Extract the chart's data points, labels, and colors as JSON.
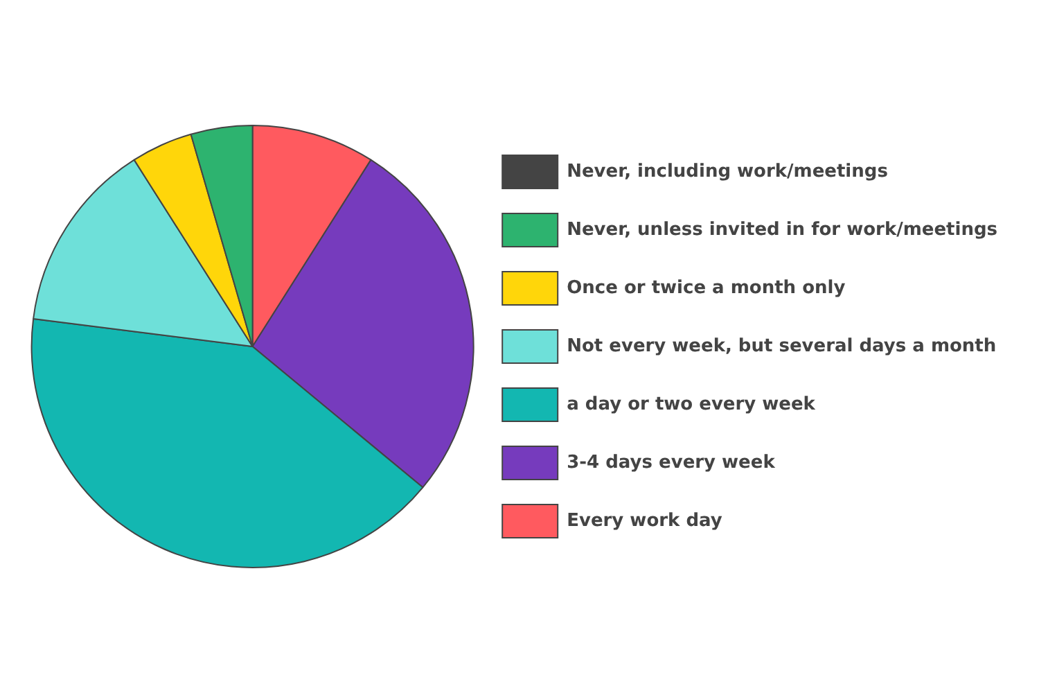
{
  "chart_data": {
    "type": "pie",
    "categories": [
      "Never, including work/meetings",
      "Never, unless invited in for work/meetings",
      "Once or twice a month only",
      "Not every week, but several days a month",
      "a day or two every week",
      "3-4 days every week",
      "Every work day"
    ],
    "values": [
      0,
      4.5,
      4.5,
      14,
      41,
      27,
      9
    ],
    "colors": [
      "#444444",
      "#2db36f",
      "#ffd60a",
      "#6ee0d9",
      "#13b7b1",
      "#763bbd",
      "#ff5a5f"
    ],
    "legend": "right"
  }
}
